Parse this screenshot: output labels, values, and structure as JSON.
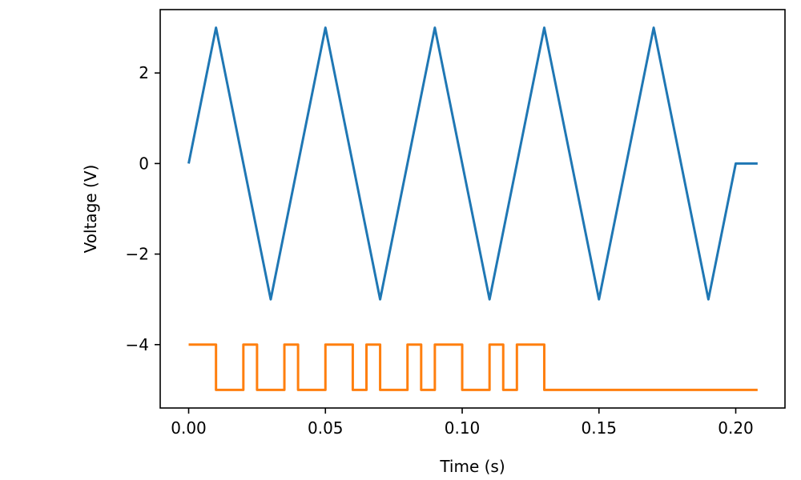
{
  "chart_data": {
    "type": "line",
    "title": "",
    "xlabel": "Time (s)",
    "ylabel": "Voltage (V)",
    "xlim": [
      -0.0104,
      0.218
    ],
    "ylim": [
      -5.4,
      3.4
    ],
    "xticks": [
      0.0,
      0.05,
      0.1,
      0.15,
      0.2
    ],
    "xtick_labels": [
      "0.00",
      "0.05",
      "0.10",
      "0.15",
      "0.20"
    ],
    "yticks": [
      2,
      0,
      -2,
      -4
    ],
    "ytick_labels": [
      "2",
      "0",
      "−2",
      "−4"
    ],
    "grid": false,
    "legend": "none",
    "series": [
      {
        "color": "#1f77b4",
        "step": false,
        "x": [
          0.0,
          0.01,
          0.03,
          0.05,
          0.07,
          0.09,
          0.11,
          0.13,
          0.15,
          0.17,
          0.19,
          0.2,
          0.208
        ],
        "y": [
          0,
          3,
          -3,
          3,
          -3,
          3,
          -3,
          3,
          -3,
          3,
          -3,
          0,
          0
        ]
      },
      {
        "color": "#ff7f0e",
        "step": true,
        "x": [
          0.0,
          0.01,
          0.02,
          0.025,
          0.035,
          0.04,
          0.05,
          0.06,
          0.065,
          0.07,
          0.08,
          0.085,
          0.09,
          0.1,
          0.11,
          0.115,
          0.12,
          0.13,
          0.208
        ],
        "y": [
          -4,
          -5,
          -4,
          -5,
          -4,
          -5,
          -4,
          -5,
          -4,
          -5,
          -4,
          -5,
          -4,
          -5,
          -4,
          -5,
          -4,
          -5,
          -5
        ]
      }
    ]
  }
}
